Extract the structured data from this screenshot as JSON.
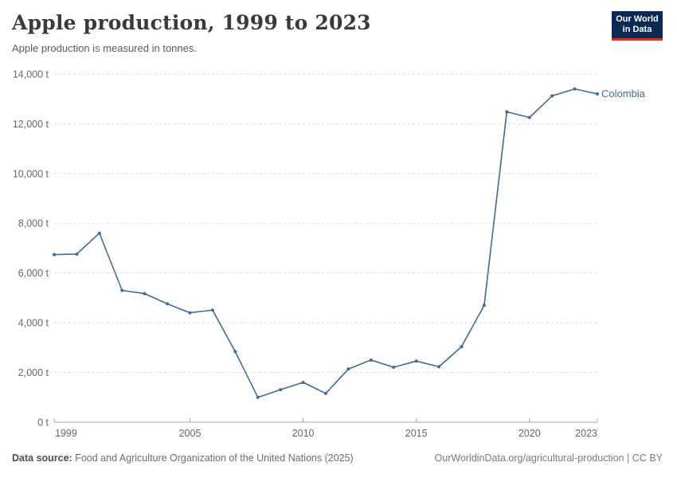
{
  "header": {
    "title": "Apple production, 1999 to 2023",
    "subtitle": "Apple production is measured in tonnes.",
    "logo": {
      "line1": "Our World",
      "line2": "in Data"
    }
  },
  "chart_data": {
    "type": "line",
    "title": "Apple production, 1999 to 2023",
    "ylabel": "",
    "xlabel": "",
    "unit": "tonnes",
    "grid": "dashed-horizontal",
    "legend_position": "end-of-line",
    "xlim": [
      1999,
      2023
    ],
    "ylim": [
      0,
      14000
    ],
    "x": [
      1999,
      2000,
      2001,
      2002,
      2003,
      2004,
      2005,
      2006,
      2007,
      2008,
      2009,
      2010,
      2011,
      2012,
      2013,
      2014,
      2015,
      2016,
      2017,
      2018,
      2019,
      2020,
      2021,
      2022,
      2023
    ],
    "series": [
      {
        "name": "Colombia",
        "color": "#3e6a9c",
        "values": [
          6740,
          6760,
          7600,
          5300,
          5170,
          4760,
          4400,
          4510,
          2840,
          1000,
          1310,
          1600,
          1160,
          2140,
          2500,
          2210,
          2460,
          2230,
          3040,
          4700,
          12480,
          12250,
          13120,
          13400,
          13200
        ]
      }
    ],
    "y_ticks": [
      {
        "value": 0,
        "label": "0 t"
      },
      {
        "value": 2000,
        "label": "2,000 t"
      },
      {
        "value": 4000,
        "label": "4,000 t"
      },
      {
        "value": 6000,
        "label": "6,000 t"
      },
      {
        "value": 8000,
        "label": "8,000 t"
      },
      {
        "value": 10000,
        "label": "10,000 t"
      },
      {
        "value": 12000,
        "label": "12,000 t"
      },
      {
        "value": 14000,
        "label": "14,000 t"
      }
    ],
    "x_ticks": [
      {
        "value": 1999,
        "label": "1999"
      },
      {
        "value": 2005,
        "label": "2005"
      },
      {
        "value": 2010,
        "label": "2010"
      },
      {
        "value": 2015,
        "label": "2015"
      },
      {
        "value": 2020,
        "label": "2020"
      },
      {
        "value": 2023,
        "label": "2023"
      }
    ]
  },
  "footer": {
    "source_label": "Data source:",
    "source_text": " Food and Agriculture Organization of the United Nations (2025)",
    "credit": "OurWorldinData.org/agricultural-production | CC BY"
  },
  "colors": {
    "line": "#3e6a9c",
    "grid": "#dddddd",
    "axis": "#a5a5a5",
    "tick_text": "#666666",
    "logo_bg": "#0b2a51",
    "logo_accent": "#d8352e"
  }
}
